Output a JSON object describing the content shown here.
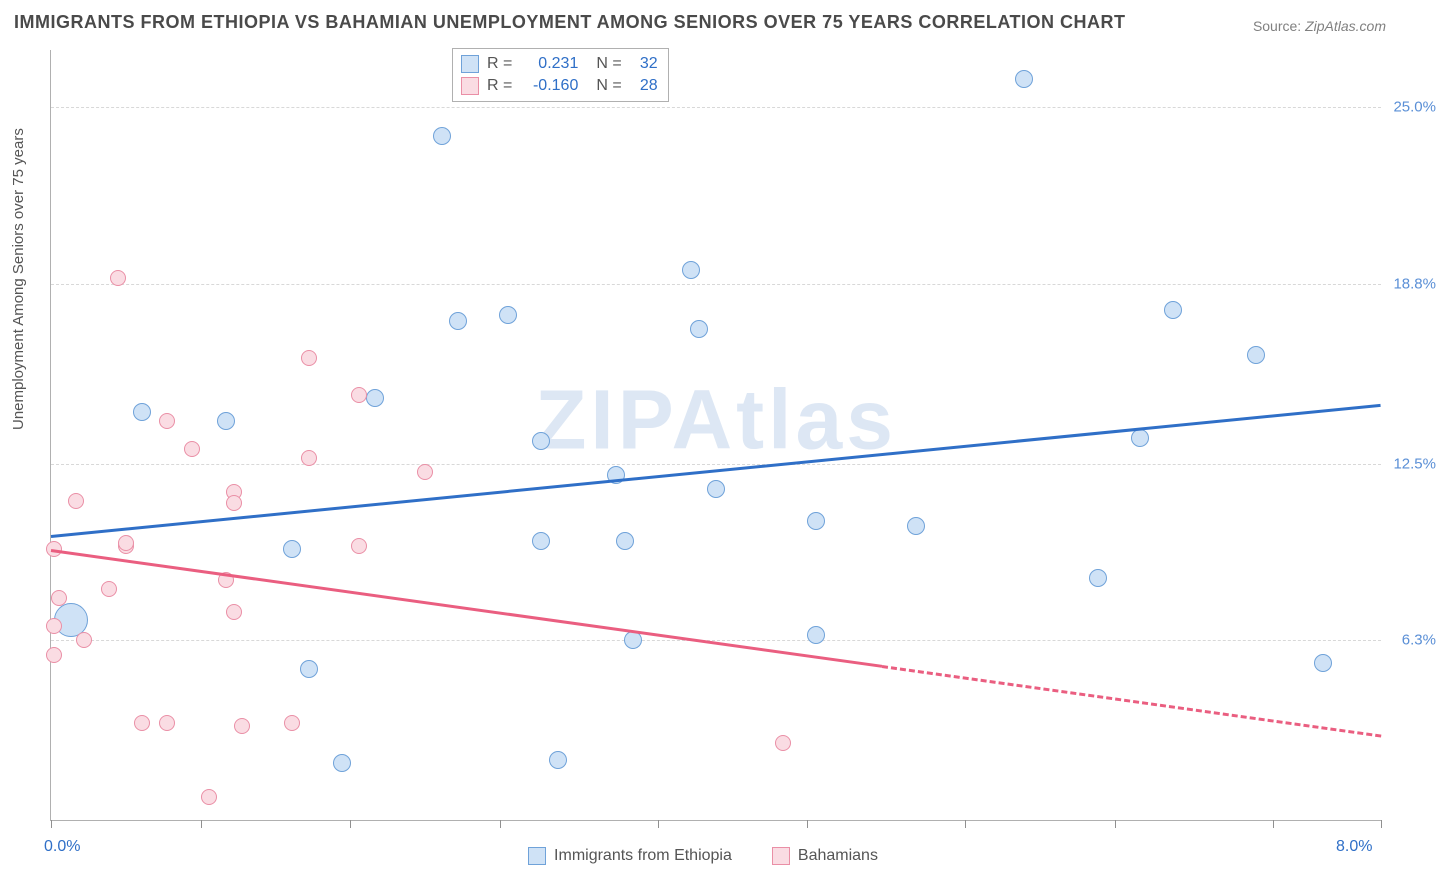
{
  "title": "IMMIGRANTS FROM ETHIOPIA VS BAHAMIAN UNEMPLOYMENT AMONG SENIORS OVER 75 YEARS CORRELATION CHART",
  "source_label": "Source:",
  "source_value": "ZipAtlas.com",
  "watermark": "ZIPAtlas",
  "ylabel": "Unemployment Among Seniors over 75 years",
  "chart": {
    "type": "scatter",
    "background_color": "#ffffff",
    "grid_color": "#d8d8d8",
    "axis_color": "#b0b0b0",
    "xlim": [
      0.0,
      8.0
    ],
    "ylim": [
      0.0,
      27.0
    ],
    "xticks_pos": [
      0.0,
      0.9,
      1.8,
      2.7,
      3.65,
      4.55,
      5.5,
      6.4,
      7.35,
      8.0
    ],
    "x_min_label": "0.0%",
    "x_max_label": "8.0%",
    "yticks": [
      {
        "v": 6.3,
        "label": "6.3%"
      },
      {
        "v": 12.5,
        "label": "12.5%"
      },
      {
        "v": 18.8,
        "label": "18.8%"
      },
      {
        "v": 25.0,
        "label": "25.0%"
      }
    ],
    "ytick_color": "#5a8fd6",
    "xlabel_color": "#2f6fc7",
    "series": [
      {
        "name": "Immigrants from Ethiopia",
        "fill": "#cfe2f6",
        "stroke": "#6fa2d9",
        "swatch_fill": "#cfe2f6",
        "swatch_stroke": "#6fa2d9",
        "marker_size": 18,
        "R": "0.231",
        "N": "32",
        "stat_color": "#2f6fc7",
        "trend": {
          "x0": 0.0,
          "y0": 10.0,
          "x1": 8.0,
          "y1": 14.6,
          "color": "#2f6fc7",
          "width": 3,
          "dash": false,
          "dash_from_x": null
        },
        "points": [
          {
            "x": 0.12,
            "y": 7.0,
            "size": 34
          },
          {
            "x": 0.55,
            "y": 14.3
          },
          {
            "x": 1.05,
            "y": 14.0
          },
          {
            "x": 1.45,
            "y": 9.5
          },
          {
            "x": 1.55,
            "y": 5.3
          },
          {
            "x": 1.75,
            "y": 2.0
          },
          {
            "x": 1.95,
            "y": 14.8
          },
          {
            "x": 2.35,
            "y": 24.0
          },
          {
            "x": 2.45,
            "y": 17.5
          },
          {
            "x": 2.75,
            "y": 17.7
          },
          {
            "x": 2.95,
            "y": 13.3
          },
          {
            "x": 2.95,
            "y": 9.8
          },
          {
            "x": 3.05,
            "y": 2.1
          },
          {
            "x": 3.4,
            "y": 12.1
          },
          {
            "x": 3.45,
            "y": 9.8
          },
          {
            "x": 3.5,
            "y": 6.3
          },
          {
            "x": 3.85,
            "y": 19.3
          },
          {
            "x": 3.9,
            "y": 17.2
          },
          {
            "x": 4.0,
            "y": 11.6
          },
          {
            "x": 4.6,
            "y": 10.5
          },
          {
            "x": 4.6,
            "y": 6.5
          },
          {
            "x": 5.2,
            "y": 10.3
          },
          {
            "x": 5.85,
            "y": 26.0
          },
          {
            "x": 6.3,
            "y": 8.5
          },
          {
            "x": 6.55,
            "y": 13.4
          },
          {
            "x": 6.75,
            "y": 17.9
          },
          {
            "x": 7.25,
            "y": 16.3
          },
          {
            "x": 7.65,
            "y": 5.5
          }
        ]
      },
      {
        "name": "Bahamians",
        "fill": "#fadce3",
        "stroke": "#ea8fa6",
        "swatch_fill": "#fadce3",
        "swatch_stroke": "#ea8fa6",
        "marker_size": 16,
        "R": "-0.160",
        "N": "28",
        "stat_color": "#2f6fc7",
        "trend": {
          "x0": 0.0,
          "y0": 9.5,
          "x1": 8.0,
          "y1": 3.0,
          "color": "#ea5e80",
          "width": 3,
          "dash": true,
          "dash_from_x": 5.0
        },
        "points": [
          {
            "x": 0.02,
            "y": 6.8
          },
          {
            "x": 0.02,
            "y": 5.8
          },
          {
            "x": 0.05,
            "y": 7.8
          },
          {
            "x": 0.02,
            "y": 9.5
          },
          {
            "x": 0.15,
            "y": 11.2
          },
          {
            "x": 0.2,
            "y": 6.3
          },
          {
            "x": 0.35,
            "y": 8.1
          },
          {
            "x": 0.4,
            "y": 19.0
          },
          {
            "x": 0.45,
            "y": 9.6
          },
          {
            "x": 0.45,
            "y": 9.7
          },
          {
            "x": 0.55,
            "y": 3.4
          },
          {
            "x": 0.7,
            "y": 14.0
          },
          {
            "x": 0.7,
            "y": 3.4
          },
          {
            "x": 0.85,
            "y": 13.0
          },
          {
            "x": 0.95,
            "y": 0.8
          },
          {
            "x": 1.05,
            "y": 8.4
          },
          {
            "x": 1.1,
            "y": 11.5
          },
          {
            "x": 1.1,
            "y": 11.1
          },
          {
            "x": 1.1,
            "y": 7.3
          },
          {
            "x": 1.15,
            "y": 3.3
          },
          {
            "x": 1.45,
            "y": 3.4
          },
          {
            "x": 1.55,
            "y": 16.2
          },
          {
            "x": 1.55,
            "y": 12.7
          },
          {
            "x": 1.85,
            "y": 9.6
          },
          {
            "x": 1.85,
            "y": 14.9
          },
          {
            "x": 2.25,
            "y": 12.2
          },
          {
            "x": 4.4,
            "y": 2.7
          }
        ]
      }
    ]
  },
  "legend_labels": {
    "R": "R  =",
    "N": "N  ="
  }
}
